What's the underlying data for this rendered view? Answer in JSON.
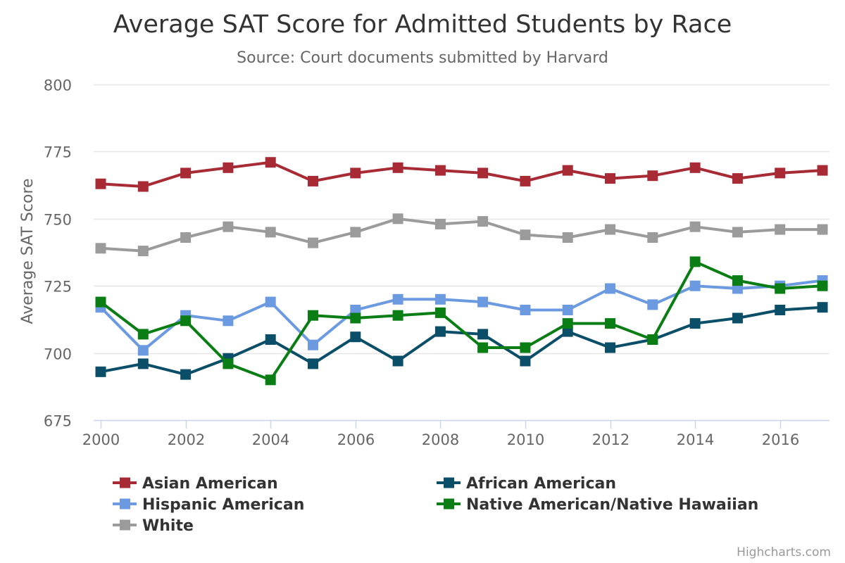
{
  "chart_data": {
    "type": "line",
    "title": "Average SAT Score for Admitted Students by Race",
    "subtitle": "Source: Court documents submitted by Harvard",
    "xlabel": "",
    "ylabel": "Average SAT Score",
    "ylim": [
      675,
      800
    ],
    "yticks": [
      675,
      700,
      725,
      750,
      775,
      800
    ],
    "xlim": [
      2000,
      2017
    ],
    "xticks": [
      2000,
      2002,
      2004,
      2006,
      2008,
      2010,
      2012,
      2014,
      2016
    ],
    "x": [
      2000,
      2001,
      2002,
      2003,
      2004,
      2005,
      2006,
      2007,
      2008,
      2009,
      2010,
      2011,
      2012,
      2013,
      2014,
      2015,
      2016,
      2017
    ],
    "grid": "horizontal",
    "legend_position": "bottom",
    "series": [
      {
        "name": "Asian American",
        "color": "#a72a34",
        "values": [
          763,
          762,
          767,
          769,
          771,
          764,
          767,
          769,
          768,
          767,
          764,
          768,
          765,
          766,
          769,
          765,
          767,
          768
        ]
      },
      {
        "name": "African American",
        "color": "#0b4e68",
        "values": [
          693,
          696,
          692,
          698,
          705,
          696,
          706,
          697,
          708,
          707,
          697,
          708,
          702,
          705,
          711,
          713,
          716,
          717
        ]
      },
      {
        "name": "Hispanic American",
        "color": "#6c9ae0",
        "values": [
          717,
          701,
          714,
          712,
          719,
          703,
          716,
          720,
          720,
          719,
          716,
          716,
          724,
          718,
          725,
          724,
          725,
          727
        ]
      },
      {
        "name": "Native American/Native Hawaiian",
        "color": "#0a7e14",
        "values": [
          719,
          707,
          712,
          696,
          690,
          714,
          713,
          714,
          715,
          702,
          702,
          711,
          711,
          705,
          734,
          727,
          724,
          725
        ]
      },
      {
        "name": "White",
        "color": "#9b9b9b",
        "values": [
          739,
          738,
          743,
          747,
          745,
          741,
          745,
          750,
          748,
          749,
          744,
          743,
          746,
          743,
          747,
          745,
          746,
          746
        ]
      }
    ],
    "credits": "Highcharts.com"
  }
}
